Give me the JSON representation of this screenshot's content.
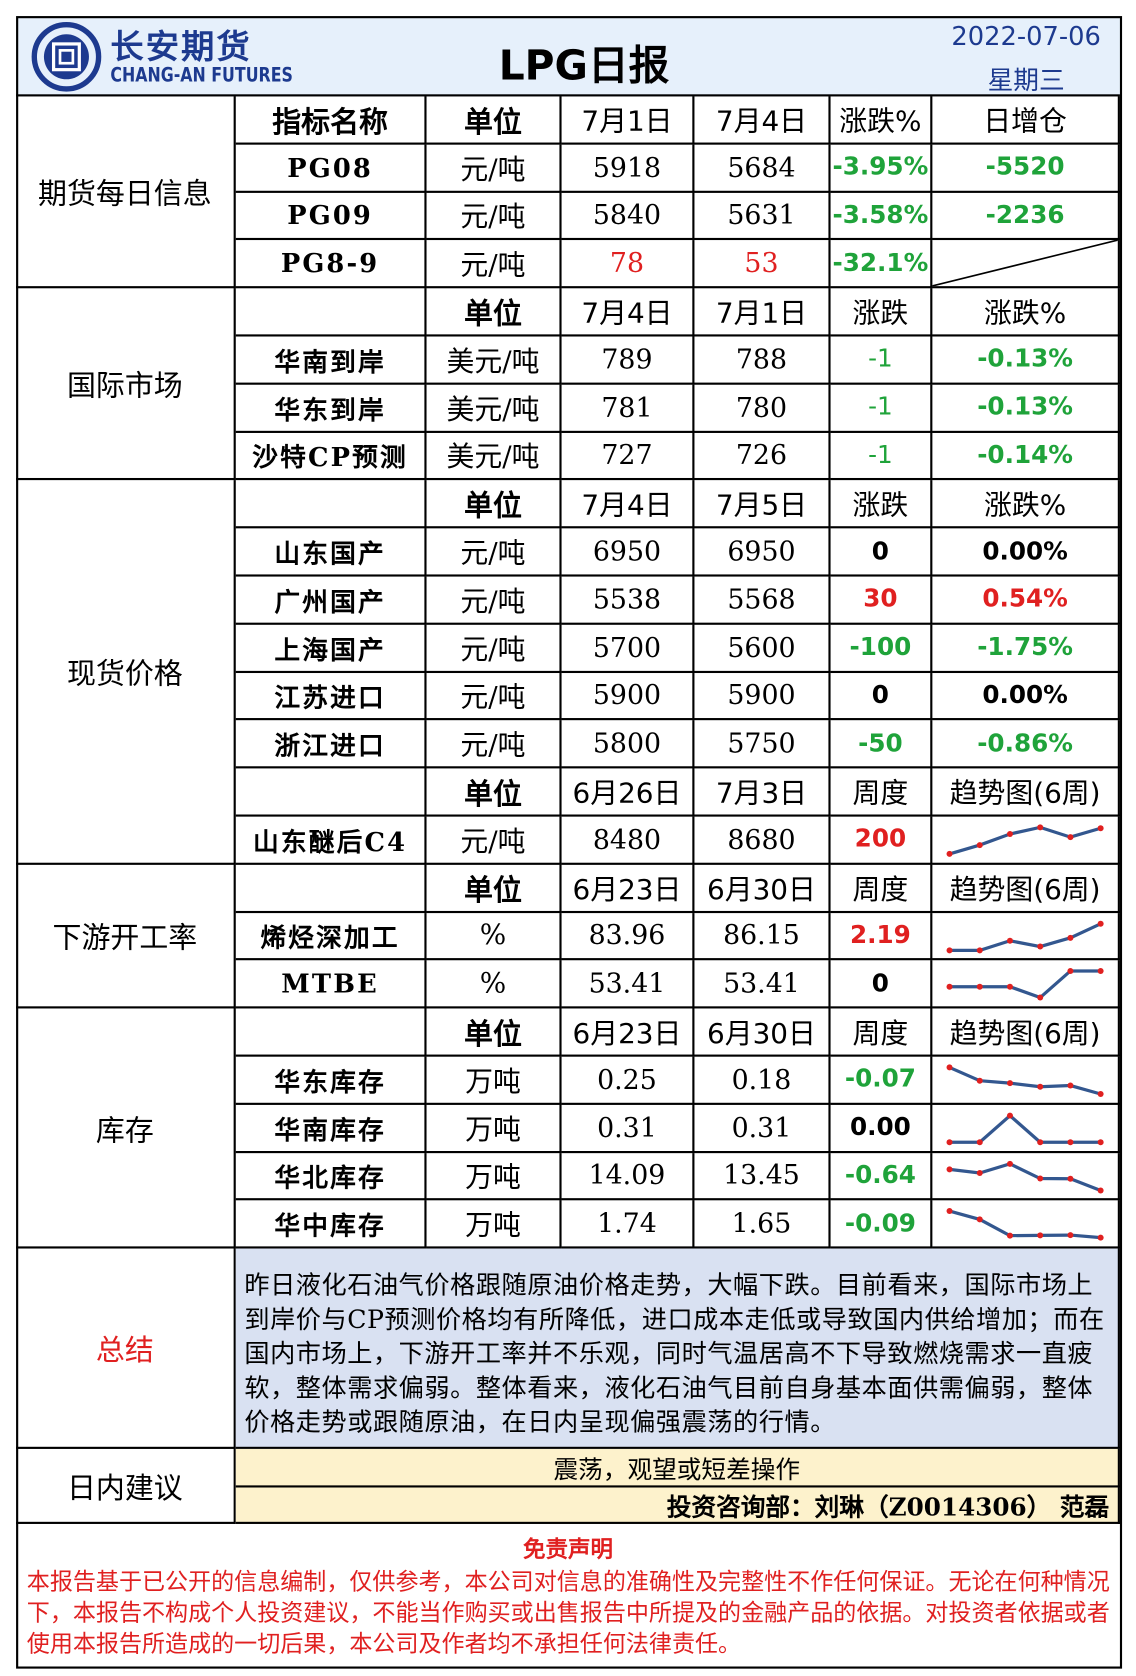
{
  "header": {
    "company_cn": "长安期货",
    "company_en": "CHANG-AN FUTURES",
    "title": "LPG日报",
    "date": "2022-07-06",
    "weekday": "星期三"
  },
  "sections": [
    {
      "label": "期货每日信息",
      "rows": [
        {
          "header": true,
          "cells": [
            "指标名称",
            "单位",
            "7月1日",
            "7月4日",
            "涨跌%",
            "日增仓"
          ]
        },
        {
          "cells": [
            "PG08",
            "元/吨",
            "5918",
            "5684",
            {
              "text": "-3.95%",
              "color": "#1fa33a"
            },
            {
              "text": "-5520",
              "color": "#1fa33a"
            }
          ]
        },
        {
          "cells": [
            "PG09",
            "元/吨",
            "5840",
            "5631",
            {
              "text": "-3.58%",
              "color": "#1fa33a"
            },
            {
              "text": "-2236",
              "color": "#1fa33a"
            }
          ]
        },
        {
          "cells": [
            "PG8-9",
            "元/吨",
            {
              "text": "78",
              "color": "#e02020",
              "weight": "normal"
            },
            {
              "text": "53",
              "color": "#e02020",
              "weight": "normal"
            },
            {
              "text": "-32.1%",
              "color": "#1fa33a"
            },
            null
          ]
        }
      ]
    },
    {
      "label": "国际市场",
      "rows": [
        {
          "header": true,
          "cells": [
            null,
            "单位",
            "7月4日",
            "7月1日",
            "涨跌",
            "涨跌%"
          ]
        },
        {
          "cells": [
            "华南到岸",
            "美元/吨",
            "789",
            "788",
            {
              "text": "-1",
              "color": "#1fa33a",
              "weight": "normal"
            },
            {
              "text": "-0.13%",
              "color": "#1fa33a"
            }
          ]
        },
        {
          "cells": [
            "华东到岸",
            "美元/吨",
            "781",
            "780",
            {
              "text": "-1",
              "color": "#1fa33a",
              "weight": "normal"
            },
            {
              "text": "-0.13%",
              "color": "#1fa33a"
            }
          ]
        },
        {
          "cells": [
            "沙特CP预测",
            "美元/吨",
            "727",
            "726",
            {
              "text": "-1",
              "color": "#1fa33a",
              "weight": "normal"
            },
            {
              "text": "-0.14%",
              "color": "#1fa33a"
            }
          ]
        }
      ]
    },
    {
      "label": "现货价格",
      "rows": [
        {
          "header": true,
          "cells": [
            null,
            "单位",
            "7月4日",
            "7月5日",
            "涨跌",
            "涨跌%"
          ]
        },
        {
          "cells": [
            "山东国产",
            "元/吨",
            "6950",
            "6950",
            "0",
            "0.00%"
          ]
        },
        {
          "cells": [
            "广州国产",
            "元/吨",
            "5538",
            "5568",
            {
              "text": "30",
              "color": "#e02020"
            },
            {
              "text": "0.54%",
              "color": "#e02020"
            }
          ]
        },
        {
          "cells": [
            "上海国产",
            "元/吨",
            "5700",
            "5600",
            {
              "text": "-100",
              "color": "#1fa33a"
            },
            {
              "text": "-1.75%",
              "color": "#1fa33a"
            }
          ]
        },
        {
          "cells": [
            "江苏进口",
            "元/吨",
            "5900",
            "5900",
            "0",
            "0.00%"
          ]
        },
        {
          "cells": [
            "浙江进口",
            "元/吨",
            "5800",
            "5750",
            {
              "text": "-50",
              "color": "#1fa33a"
            },
            {
              "text": "-0.86%",
              "color": "#1fa33a"
            }
          ]
        },
        {
          "header": true,
          "cells": [
            null,
            "单位",
            "6月26日",
            "7月3日",
            "周度",
            "趋势图(6周)"
          ]
        },
        {
          "cells": [
            "山东醚后C4",
            "元/吨",
            "8480",
            "8680",
            {
              "text": "200",
              "color": "#e02020"
            },
            {
              "trend": [
                8100,
                8300,
                8550,
                8700,
                8480,
                8680
              ]
            }
          ]
        }
      ]
    },
    {
      "label": "下游开工率",
      "rows": [
        {
          "header": true,
          "cells": [
            null,
            "单位",
            "6月23日",
            "6月30日",
            "周度",
            "趋势图(6周)"
          ]
        },
        {
          "cells": [
            "烯烃深加工",
            "%",
            "83.96",
            "86.15",
            {
              "text": "2.19",
              "color": "#e02020"
            },
            {
              "trend": [
                82.0,
                82.0,
                83.5,
                82.6,
                83.96,
                86.15
              ]
            }
          ]
        },
        {
          "cells": [
            "MTBE",
            "%",
            "53.41",
            "53.41",
            "0",
            {
              "trend": [
                50.5,
                50.5,
                50.5,
                48.5,
                53.41,
                53.41
              ]
            }
          ]
        }
      ]
    },
    {
      "label": "库存",
      "rows": [
        {
          "header": true,
          "cells": [
            null,
            "单位",
            "6月23日",
            "6月30日",
            "周度",
            "趋势图(6周)"
          ]
        },
        {
          "cells": [
            "华东库存",
            "万吨",
            "0.25",
            "0.18",
            {
              "text": "-0.07",
              "color": "#1fa33a"
            },
            {
              "trend": [
                0.4,
                0.29,
                0.27,
                0.24,
                0.25,
                0.18
              ]
            }
          ]
        },
        {
          "cells": [
            "华南库存",
            "万吨",
            "0.31",
            "0.31",
            "0.00",
            {
              "trend": [
                0.31,
                0.31,
                0.9,
                0.31,
                0.31,
                0.31
              ]
            }
          ]
        },
        {
          "cells": [
            "华北库存",
            "万吨",
            "14.09",
            "13.45",
            {
              "text": "-0.64",
              "color": "#1fa33a"
            },
            {
              "trend": [
                14.6,
                14.4,
                14.9,
                14.1,
                14.09,
                13.45
              ]
            }
          ]
        },
        {
          "cells": [
            "华中库存",
            "万吨",
            "1.74",
            "1.65",
            {
              "text": "-0.09",
              "color": "#1fa33a"
            },
            {
              "trend": [
                2.6,
                2.3,
                1.72,
                1.73,
                1.74,
                1.65
              ]
            }
          ]
        }
      ]
    }
  ],
  "summary": {
    "label": "总结",
    "text": "昨日液化石油气价格跟随原油价格走势，大幅下跌。目前看来，国际市场上到岸价与CP预测价格均有所降低，进口成本走低或导致国内供给增加；而在国内市场上，下游开工率并不乐观，同时气温居高不下导致燃烧需求一直疲软，整体需求偏弱。整体看来，液化石油气目前自身基本面供需偏弱，整体价格走势或跟随原油，在日内呈现偏强震荡的行情。"
  },
  "advice": {
    "label": "日内建议",
    "text": "震荡，观望或短差操作",
    "contact": "投资咨询部：刘琳（Z0014306） 范磊"
  },
  "disclaimer": {
    "title": "免责声明",
    "text": "本报告基于已公开的信息编制，仅供参考，本公司对信息的准确性及完整性不作任何保证。无论在何种情况下，本报告不构成个人投资建议，不能当作购买或出售报告中所提及的金融产品的依据。对投资者依据或者使用本报告所造成的一切后果，本公司及作者均不承担任何法律责任。"
  }
}
